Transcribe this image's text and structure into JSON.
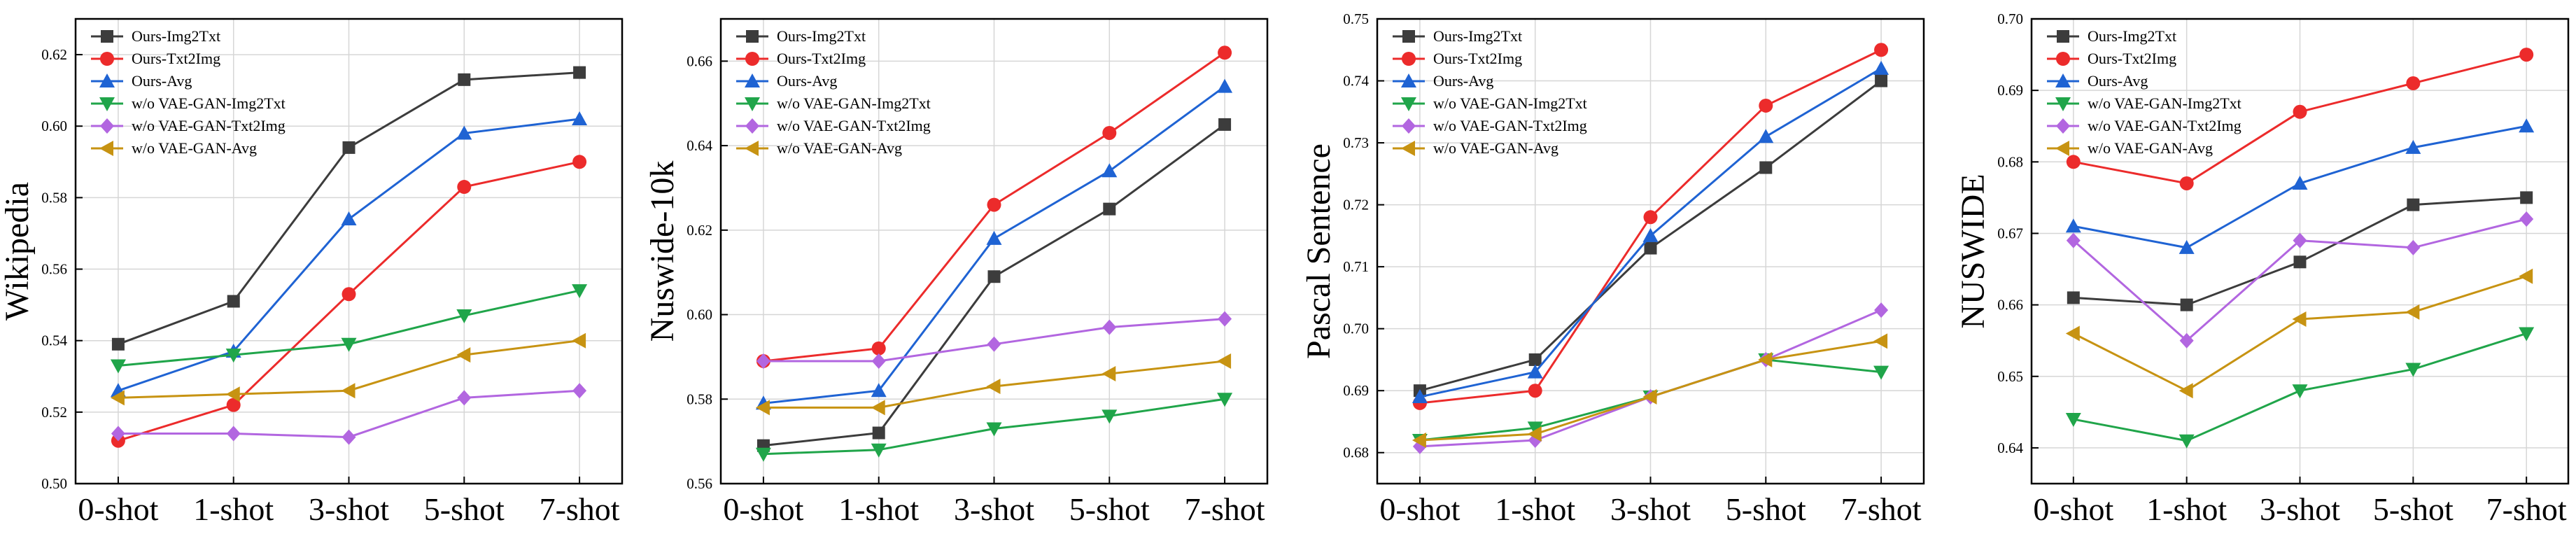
{
  "chart_data": [
    {
      "type": "line",
      "title": "",
      "xlabel": "",
      "ylabel": "Wikipedia",
      "categories": [
        "0-shot",
        "1-shot",
        "3-shot",
        "5-shot",
        "7-shot"
      ],
      "ylim": [
        0.5,
        0.63
      ],
      "yticks": [
        "0.50",
        "0.52",
        "0.54",
        "0.56",
        "0.58",
        "0.60",
        "0.62"
      ],
      "grid": true,
      "legend": "top-left",
      "series": [
        {
          "name": "Ours-Img2Txt",
          "color": "#3c3c3c",
          "marker": "square",
          "values": [
            0.539,
            0.551,
            0.594,
            0.613,
            0.615
          ]
        },
        {
          "name": "Ours-Txt2Img",
          "color": "#ec2b2b",
          "marker": "circle",
          "values": [
            0.512,
            0.522,
            0.553,
            0.583,
            0.59
          ]
        },
        {
          "name": "Ours-Avg",
          "color": "#1f63d3",
          "marker": "triangle-up",
          "values": [
            0.526,
            0.537,
            0.574,
            0.598,
            0.602
          ]
        },
        {
          "name": "w/o VAE-GAN-Img2Txt",
          "color": "#20a54a",
          "marker": "triangle-down",
          "values": [
            0.533,
            0.536,
            0.539,
            0.547,
            0.554
          ]
        },
        {
          "name": "w/o VAE-GAN-Txt2Img",
          "color": "#b266e0",
          "marker": "diamond",
          "values": [
            0.514,
            0.514,
            0.513,
            0.524,
            0.526
          ]
        },
        {
          "name": "w/o VAE-GAN-Avg",
          "color": "#c79312",
          "marker": "triangle-left",
          "values": [
            0.524,
            0.525,
            0.526,
            0.536,
            0.54
          ]
        }
      ]
    },
    {
      "type": "line",
      "title": "",
      "xlabel": "",
      "ylabel": "Nuswide-10k",
      "categories": [
        "0-shot",
        "1-shot",
        "3-shot",
        "5-shot",
        "7-shot"
      ],
      "ylim": [
        0.56,
        0.67
      ],
      "yticks": [
        "0.56",
        "0.58",
        "0.60",
        "0.62",
        "0.64",
        "0.66"
      ],
      "grid": true,
      "legend": "top-left",
      "series": [
        {
          "name": "Ours-Img2Txt",
          "color": "#3c3c3c",
          "marker": "square",
          "values": [
            0.569,
            0.572,
            0.609,
            0.625,
            0.645
          ]
        },
        {
          "name": "Ours-Txt2Img",
          "color": "#ec2b2b",
          "marker": "circle",
          "values": [
            0.589,
            0.592,
            0.626,
            0.643,
            0.662
          ]
        },
        {
          "name": "Ours-Avg",
          "color": "#1f63d3",
          "marker": "triangle-up",
          "values": [
            0.579,
            0.582,
            0.618,
            0.634,
            0.654
          ]
        },
        {
          "name": "w/o VAE-GAN-Img2Txt",
          "color": "#20a54a",
          "marker": "triangle-down",
          "values": [
            0.567,
            0.568,
            0.573,
            0.576,
            0.58
          ]
        },
        {
          "name": "w/o VAE-GAN-Txt2Img",
          "color": "#b266e0",
          "marker": "diamond",
          "values": [
            0.589,
            0.589,
            0.593,
            0.597,
            0.599
          ]
        },
        {
          "name": "w/o VAE-GAN-Avg",
          "color": "#c79312",
          "marker": "triangle-left",
          "values": [
            0.578,
            0.578,
            0.583,
            0.586,
            0.589
          ]
        }
      ]
    },
    {
      "type": "line",
      "title": "",
      "xlabel": "",
      "ylabel": "Pascal Sentence",
      "categories": [
        "0-shot",
        "1-shot",
        "3-shot",
        "5-shot",
        "7-shot"
      ],
      "ylim": [
        0.675,
        0.75
      ],
      "yticks": [
        "0.68",
        "0.69",
        "0.70",
        "0.71",
        "0.72",
        "0.73",
        "0.74",
        "0.75"
      ],
      "grid": true,
      "legend": "top-left",
      "series": [
        {
          "name": "Ours-Img2Txt",
          "color": "#3c3c3c",
          "marker": "square",
          "values": [
            0.69,
            0.695,
            0.713,
            0.726,
            0.74
          ]
        },
        {
          "name": "Ours-Txt2Img",
          "color": "#ec2b2b",
          "marker": "circle",
          "values": [
            0.688,
            0.69,
            0.718,
            0.736,
            0.745
          ]
        },
        {
          "name": "Ours-Avg",
          "color": "#1f63d3",
          "marker": "triangle-up",
          "values": [
            0.689,
            0.693,
            0.715,
            0.731,
            0.742
          ]
        },
        {
          "name": "w/o VAE-GAN-Img2Txt",
          "color": "#20a54a",
          "marker": "triangle-down",
          "values": [
            0.682,
            0.684,
            0.689,
            0.695,
            0.693
          ]
        },
        {
          "name": "w/o VAE-GAN-Txt2Img",
          "color": "#b266e0",
          "marker": "diamond",
          "values": [
            0.681,
            0.682,
            0.689,
            0.695,
            0.703
          ]
        },
        {
          "name": "w/o VAE-GAN-Avg",
          "color": "#c79312",
          "marker": "triangle-left",
          "values": [
            0.682,
            0.683,
            0.689,
            0.695,
            0.698
          ]
        }
      ]
    },
    {
      "type": "line",
      "title": "",
      "xlabel": "",
      "ylabel": "NUSWIDE",
      "categories": [
        "0-shot",
        "1-shot",
        "3-shot",
        "5-shot",
        "7-shot"
      ],
      "ylim": [
        0.635,
        0.7
      ],
      "yticks": [
        "0.64",
        "0.65",
        "0.66",
        "0.67",
        "0.68",
        "0.69",
        "0.70"
      ],
      "grid": true,
      "legend": "top-left",
      "series": [
        {
          "name": "Ours-Img2Txt",
          "color": "#3c3c3c",
          "marker": "square",
          "values": [
            0.661,
            0.66,
            0.666,
            0.674,
            0.675
          ]
        },
        {
          "name": "Ours-Txt2Img",
          "color": "#ec2b2b",
          "marker": "circle",
          "values": [
            0.68,
            0.677,
            0.687,
            0.691,
            0.695
          ]
        },
        {
          "name": "Ours-Avg",
          "color": "#1f63d3",
          "marker": "triangle-up",
          "values": [
            0.671,
            0.668,
            0.677,
            0.682,
            0.685
          ]
        },
        {
          "name": "w/o VAE-GAN-Img2Txt",
          "color": "#20a54a",
          "marker": "triangle-down",
          "values": [
            0.644,
            0.641,
            0.648,
            0.651,
            0.656
          ]
        },
        {
          "name": "w/o VAE-GAN-Txt2Img",
          "color": "#b266e0",
          "marker": "diamond",
          "values": [
            0.669,
            0.655,
            0.669,
            0.668,
            0.672
          ]
        },
        {
          "name": "w/o VAE-GAN-Avg",
          "color": "#c79312",
          "marker": "triangle-left",
          "values": [
            0.656,
            0.648,
            0.658,
            0.659,
            0.664
          ]
        }
      ]
    }
  ]
}
